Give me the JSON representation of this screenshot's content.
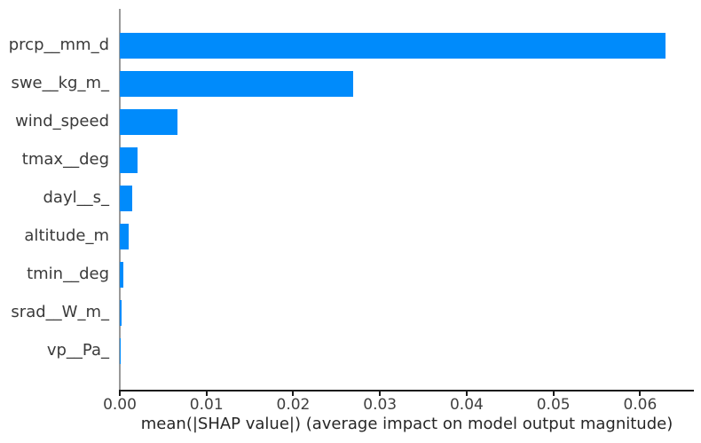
{
  "chart_data": {
    "type": "bar",
    "orientation": "horizontal",
    "title": "",
    "xlabel": "mean(|SHAP value|) (average impact on model output magnitude)",
    "ylabel": "",
    "categories": [
      "prcp__mm_d",
      "swe__kg_m_",
      "wind_speed",
      "tmax__deg",
      "dayl__s_",
      "altitude_m",
      "tmin__deg",
      "srad__W_m_",
      "vp__Pa_"
    ],
    "values": [
      0.0629,
      0.0269,
      0.0066,
      0.002,
      0.0014,
      0.001,
      0.0004,
      0.0002,
      3e-05
    ],
    "xlim": [
      0,
      0.0662
    ],
    "xticks": [
      0.0,
      0.01,
      0.02,
      0.03,
      0.04,
      0.05,
      0.06
    ],
    "xtick_labels": [
      "0.00",
      "0.01",
      "0.02",
      "0.03",
      "0.04",
      "0.05",
      "0.06"
    ],
    "grid": false,
    "legend": null,
    "colors": {
      "bar": "#008bfb",
      "zero_line": "#999999",
      "axis": "#1a1a1a",
      "text": "#3a3a3a"
    }
  }
}
